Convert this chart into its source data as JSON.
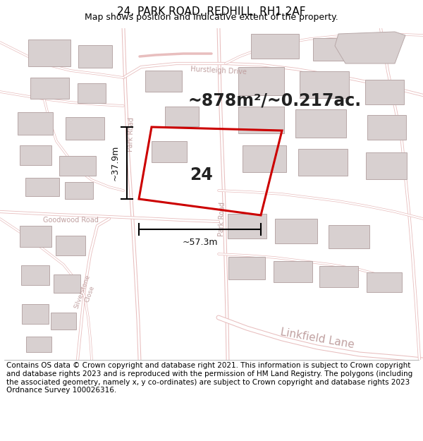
{
  "title": "24, PARK ROAD, REDHILL, RH1 2AF",
  "subtitle": "Map shows position and indicative extent of the property.",
  "area_text": "~878m²/~0.217ac.",
  "plot_label": "24",
  "width_label": "~57.3m",
  "height_label": "~37.9m",
  "footer_text": "Contains OS data © Crown copyright and database right 2021. This information is subject to Crown copyright and database rights 2023 and is reproduced with the permission of HM Land Registry. The polygons (including the associated geometry, namely x, y co-ordinates) are subject to Crown copyright and database rights 2023 Ordnance Survey 100026316.",
  "map_bg": "#ffffff",
  "road_color": "#f2c8c8",
  "road_lw": 1.2,
  "road_label_color": "#c0a0a0",
  "plot_edge": "#cc0000",
  "building_fill": "#d8d0d0",
  "building_edge": "#b8a8a8",
  "dim_line_color": "#000000",
  "title_fontsize": 11,
  "subtitle_fontsize": 9,
  "area_fontsize": 17,
  "label_fontsize": 17,
  "dim_fontsize": 9,
  "road_label_fontsize": 7,
  "footer_fontsize": 7.5,
  "linkfield_fontsize": 11
}
